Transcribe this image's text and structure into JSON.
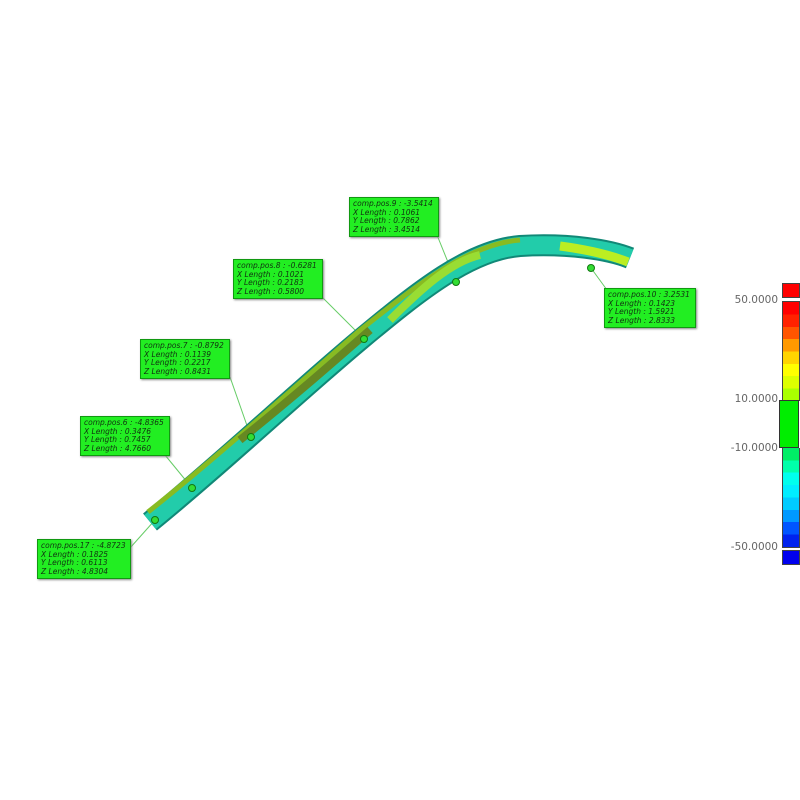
{
  "annotations": [
    {
      "id": "comp.pos.17",
      "value": "comp.pos.17 : -4.8723",
      "x": "X Length : 0.1825",
      "y": "Y Length : 0.6113",
      "z": "Z Length : 4.8304"
    },
    {
      "id": "comp.pos.6",
      "value": "comp.pos.6 : -4.8365",
      "x": "X Length : 0.3476",
      "y": "Y Length : 0.7457",
      "z": "Z Length : 4.7660"
    },
    {
      "id": "comp.pos.7",
      "value": "comp.pos.7 : -0.8792",
      "x": "X Length : 0.1139",
      "y": "Y Length : 0.2217",
      "z": "Z Length : 0.8431"
    },
    {
      "id": "comp.pos.8",
      "value": "comp.pos.8 : -0.6281",
      "x": "X Length : 0.1021",
      "y": "Y Length : 0.2183",
      "z": "Z Length : 0.5800"
    },
    {
      "id": "comp.pos.9",
      "value": "comp.pos.9 : -3.5414",
      "x": "X Length : 0.1061",
      "y": "Y Length : 0.7862",
      "z": "Z Length : 3.4514"
    },
    {
      "id": "comp.pos.10",
      "value": "comp.pos.10 : 3.2531",
      "x": "X Length : 0.1423",
      "y": "Y Length : 1.5921",
      "z": "Z Length : 2.8333"
    }
  ],
  "color_scale": {
    "labels": [
      "50.0000",
      "10.0000",
      "-10.0000",
      "-50.0000"
    ],
    "over_color": "#ff0000",
    "under_color": "#0000ee",
    "upper_colors": [
      "#ff0000",
      "#ff2200",
      "#ff5500",
      "#ff9900",
      "#ffd400",
      "#ffff00",
      "#ddff00",
      "#aaff00"
    ],
    "tolerance_color": "#00ee00",
    "lower_colors": [
      "#00ee66",
      "#00ffaa",
      "#00ffee",
      "#00eeff",
      "#00ccff",
      "#0099ff",
      "#0055ff",
      "#0022ee"
    ]
  }
}
